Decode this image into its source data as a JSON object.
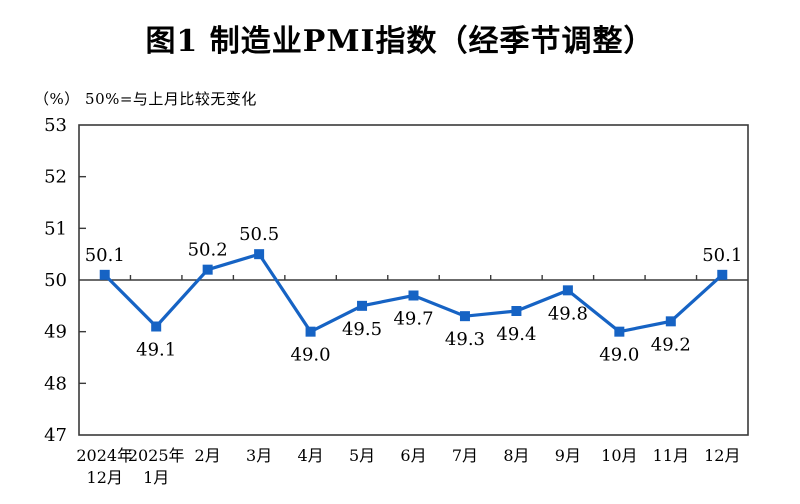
{
  "title": "图1 制造业PMI指数（经季节调整）",
  "subtitle": "（%） 50%=与上月比较无变化",
  "chart_data": {
    "type": "line",
    "title": "图1 制造业PMI指数（经季节调整）",
    "unit_note": "（%） 50%=与上月比较无变化",
    "categories": [
      "2024年\n12月",
      "2025年\n1月",
      "2月",
      "3月",
      "4月",
      "5月",
      "6月",
      "7月",
      "8月",
      "9月",
      "10月",
      "11月",
      "12月"
    ],
    "values": [
      50.1,
      49.1,
      50.2,
      50.5,
      49.0,
      49.5,
      49.7,
      49.3,
      49.4,
      49.8,
      49.0,
      49.2,
      50.1
    ],
    "labels": [
      "50.1",
      "49.1",
      "50.2",
      "50.5",
      "49.0",
      "49.5",
      "49.7",
      "49.3",
      "49.4",
      "49.8",
      "49.0",
      "49.2",
      "50.1"
    ],
    "ylim": [
      47,
      53
    ],
    "ytick_step": 1,
    "ytick_labels": [
      "47",
      "48",
      "49",
      "50",
      "51",
      "52",
      "53"
    ],
    "reference_line": 50,
    "grid": false,
    "legend": "none",
    "line_color": "#1663C4",
    "marker": "square",
    "axis_color": "#3a3a3a",
    "label_color": "#000000"
  }
}
